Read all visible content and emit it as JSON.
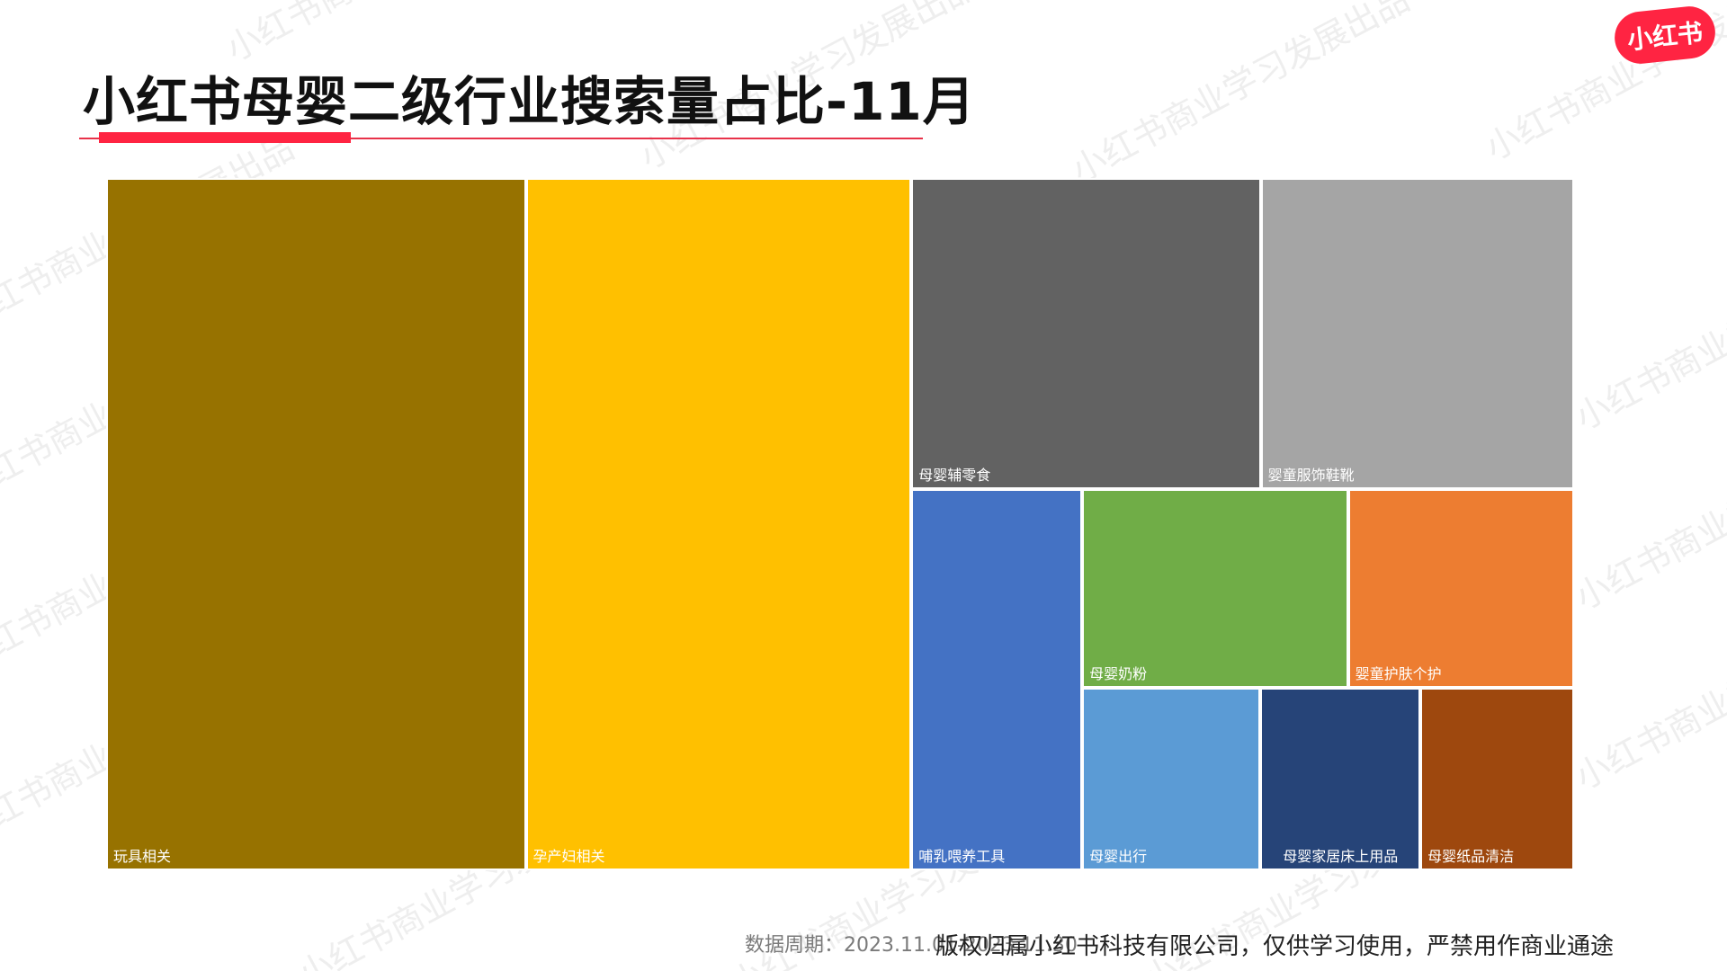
{
  "title": "小红书母婴二级行业搜索量占比-11月",
  "logo": {
    "text": "小红书",
    "color": "#ff2442"
  },
  "watermark": "小红书商业学习发展出品",
  "footer": {
    "period": "数据周期：2023.11.01-2023.11.30",
    "copyright": "版权归属小红书科技有限公司，仅供学习使用，严禁用作商业通途"
  },
  "chart_data": {
    "type": "treemap",
    "title": "小红书母婴二级行业搜索量占比-11月",
    "unit": "share of search volume (estimated from tile area)",
    "items": [
      {
        "name": "玩具相关",
        "value": 0.259,
        "color": "#977200"
      },
      {
        "name": "孕产妇相关",
        "value": 0.238,
        "color": "#ffc000"
      },
      {
        "name": "母婴辅零食",
        "value": 0.097,
        "color": "#626262"
      },
      {
        "name": "婴童服饰鞋靴",
        "value": 0.087,
        "color": "#a5a5a5"
      },
      {
        "name": "哺乳喂养工具",
        "value": 0.058,
        "color": "#4472c4"
      },
      {
        "name": "母婴奶粉",
        "value": 0.047,
        "color": "#70ad47"
      },
      {
        "name": "婴童护肤个护",
        "value": 0.04,
        "color": "#ed7d31"
      },
      {
        "name": "母婴出行",
        "value": 0.029,
        "color": "#5b9bd5"
      },
      {
        "name": "母婴家居床上用品",
        "value": 0.026,
        "color": "#264478"
      },
      {
        "name": "母婴纸品清洁",
        "value": 0.025,
        "color": "#9e480e"
      }
    ]
  }
}
